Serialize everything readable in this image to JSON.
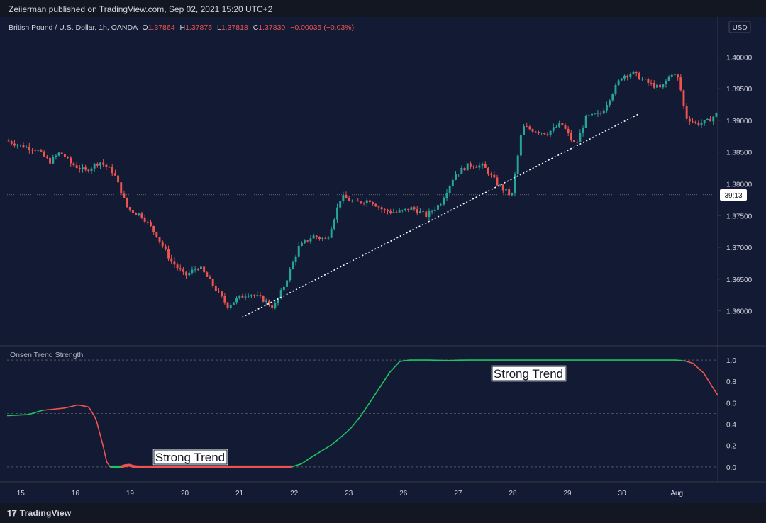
{
  "header": {
    "published_text": "Zeiierman published on TradingView.com, Sep 02, 2021 15:20 UTC+2"
  },
  "legend": {
    "symbol": "British Pound / U.S. Dollar, 1h, OANDA",
    "o_label": "O",
    "o_value": "1.37864",
    "h_label": "H",
    "h_value": "1.37875",
    "l_label": "L",
    "l_value": "1.37818",
    "c_label": "C",
    "c_value": "1.37830",
    "change": "−0.00035 (−0.03%)"
  },
  "currency_label": "USD",
  "countdown_label": "39:13",
  "indicator_title": "Onsen Trend Strength",
  "annotations": {
    "strong_trend_top": "Strong Trend",
    "strong_trend_bottom": "Strong Trend"
  },
  "footer": {
    "brand": "TradingView",
    "logo_mark": "𝟏𝟕"
  },
  "colors": {
    "background": "#131a33",
    "up": "#26a69a",
    "down": "#ef5350",
    "strength_up": "#1ec463",
    "strength_down": "#ef5350",
    "text": "#d1d4dc",
    "grid": "#363a45"
  },
  "chart_data": [
    {
      "type": "candlestick",
      "title": "British Pound / U.S. Dollar, 1h, OANDA",
      "ylim": [
        1.3555,
        1.4045
      ],
      "y_ticks": [
        "1.36000",
        "1.36500",
        "1.37000",
        "1.37500",
        "1.38000",
        "1.38500",
        "1.39000",
        "1.39500",
        "1.40000"
      ],
      "x_tick_labels": [
        "15",
        "16",
        "19",
        "20",
        "21",
        "22",
        "23",
        "26",
        "27",
        "28",
        "29",
        "30",
        "Aug"
      ],
      "current_price": 1.3783,
      "trendline": {
        "from": {
          "x_label": "21",
          "y": 1.359
        },
        "to": {
          "x_label": "30",
          "y": 1.391
        },
        "style": "dotted"
      },
      "price_path": [
        [
          0,
          1.3868
        ],
        [
          0.02,
          1.386
        ],
        [
          0.04,
          1.3855
        ],
        [
          0.06,
          1.3835
        ],
        [
          0.075,
          1.385
        ],
        [
          0.09,
          1.3832
        ],
        [
          0.11,
          1.382
        ],
        [
          0.13,
          1.3835
        ],
        [
          0.15,
          1.3818
        ],
        [
          0.17,
          1.376
        ],
        [
          0.19,
          1.375
        ],
        [
          0.21,
          1.372
        ],
        [
          0.23,
          1.368
        ],
        [
          0.25,
          1.3655
        ],
        [
          0.27,
          1.367
        ],
        [
          0.29,
          1.364
        ],
        [
          0.31,
          1.3608
        ],
        [
          0.325,
          1.362
        ],
        [
          0.34,
          1.3628
        ],
        [
          0.36,
          1.3618
        ],
        [
          0.375,
          1.3605
        ],
        [
          0.39,
          1.364
        ],
        [
          0.41,
          1.37
        ],
        [
          0.43,
          1.3718
        ],
        [
          0.45,
          1.3712
        ],
        [
          0.47,
          1.378
        ],
        [
          0.49,
          1.377
        ],
        [
          0.51,
          1.3775
        ],
        [
          0.53,
          1.3758
        ],
        [
          0.55,
          1.3755
        ],
        [
          0.57,
          1.3762
        ],
        [
          0.59,
          1.375
        ],
        [
          0.61,
          1.377
        ],
        [
          0.63,
          1.3815
        ],
        [
          0.65,
          1.383
        ],
        [
          0.67,
          1.3828
        ],
        [
          0.69,
          1.38
        ],
        [
          0.71,
          1.378
        ],
        [
          0.725,
          1.389
        ],
        [
          0.74,
          1.3885
        ],
        [
          0.76,
          1.388
        ],
        [
          0.78,
          1.3895
        ],
        [
          0.8,
          1.386
        ],
        [
          0.815,
          1.3905
        ],
        [
          0.835,
          1.391
        ],
        [
          0.85,
          1.394
        ],
        [
          0.865,
          1.397
        ],
        [
          0.88,
          1.3975
        ],
        [
          0.9,
          1.396
        ],
        [
          0.92,
          1.395
        ],
        [
          0.935,
          1.3975
        ],
        [
          0.945,
          1.3965
        ],
        [
          0.955,
          1.3905
        ],
        [
          0.97,
          1.3895
        ],
        [
          0.985,
          1.3898
        ],
        [
          1.0,
          1.3912
        ]
      ]
    },
    {
      "type": "line",
      "title": "Onsen Trend Strength",
      "ylim": [
        -0.1,
        1.08
      ],
      "y_ticks": [
        "0.0",
        "0.2",
        "0.4",
        "0.6",
        "0.8",
        "1.0"
      ],
      "x_tick_labels": [
        "15",
        "16",
        "19",
        "20",
        "21",
        "22",
        "23",
        "26",
        "27",
        "28",
        "29",
        "30",
        "Aug"
      ],
      "reference_lines": [
        0.0,
        0.5,
        1.0
      ],
      "series": [
        {
          "values": [
            [
              0,
              0.48
            ],
            [
              0.03,
              0.49
            ],
            [
              0.05,
              0.53
            ],
            [
              0.08,
              0.55
            ],
            [
              0.1,
              0.58
            ],
            [
              0.115,
              0.56
            ],
            [
              0.125,
              0.45
            ],
            [
              0.135,
              0.2
            ],
            [
              0.14,
              0.05
            ],
            [
              0.145,
              0.0
            ],
            [
              0.16,
              0.0
            ],
            [
              0.17,
              0.02
            ],
            [
              0.18,
              0.0
            ],
            [
              0.3,
              0.0
            ],
            [
              0.4,
              0.0
            ],
            [
              0.415,
              0.03
            ],
            [
              0.43,
              0.1
            ],
            [
              0.46,
              0.22
            ],
            [
              0.49,
              0.4
            ],
            [
              0.52,
              0.7
            ],
            [
              0.545,
              0.95
            ],
            [
              0.555,
              1.0
            ],
            [
              0.6,
              1.0
            ],
            [
              0.62,
              0.995
            ],
            [
              0.64,
              1.0
            ],
            [
              0.8,
              1.0
            ],
            [
              0.95,
              1.0
            ],
            [
              0.965,
              0.97
            ],
            [
              0.98,
              0.88
            ],
            [
              1.0,
              0.67
            ]
          ],
          "segments": [
            {
              "from": 0,
              "to": 0.05,
              "direction": "up"
            },
            {
              "from": 0.05,
              "to": 0.145,
              "direction": "down"
            },
            {
              "from": 0.145,
              "to": 0.16,
              "direction": "up"
            },
            {
              "from": 0.16,
              "to": 0.4,
              "direction": "down"
            },
            {
              "from": 0.4,
              "to": 0.955,
              "direction": "up"
            },
            {
              "from": 0.955,
              "to": 1.0,
              "direction": "down"
            }
          ]
        }
      ]
    }
  ]
}
